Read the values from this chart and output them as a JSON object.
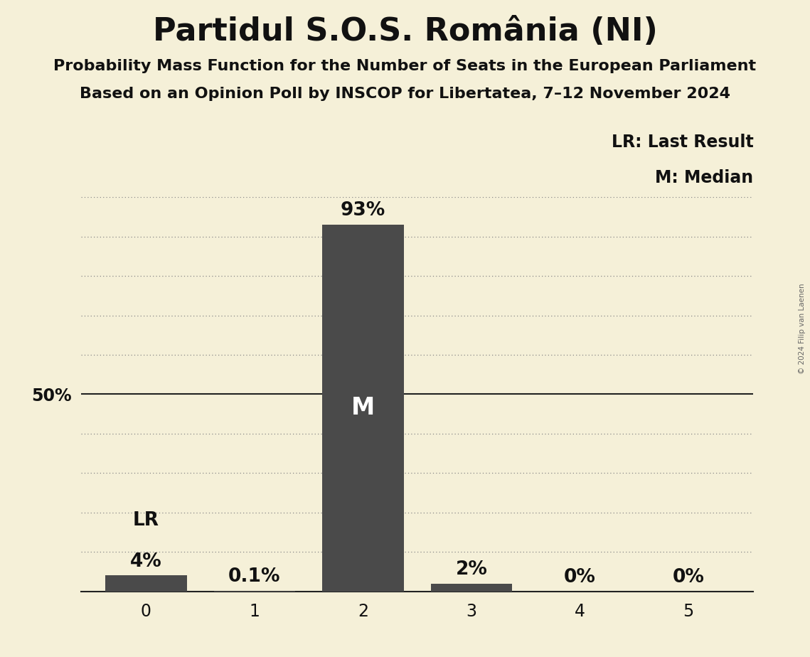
{
  "title": "Partidul S.O.S. România (NI)",
  "subtitle1": "Probability Mass Function for the Number of Seats in the European Parliament",
  "subtitle2": "Based on an Opinion Poll by INSCOP for Libertatea, 7–12 November 2024",
  "copyright": "© 2024 Filip van Laenen",
  "categories": [
    0,
    1,
    2,
    3,
    4,
    5
  ],
  "values": [
    4.0,
    0.1,
    93.0,
    2.0,
    0.0,
    0.0
  ],
  "bar_color": "#4a4a4a",
  "background_color": "#f5f0d8",
  "bar_labels": [
    "4%",
    "0.1%",
    "93%",
    "2%",
    "0%",
    "0%"
  ],
  "median_bar": 2,
  "lr_bar": 0,
  "ylim": [
    0,
    100
  ],
  "yticks": [
    0,
    10,
    20,
    30,
    40,
    50,
    60,
    70,
    80,
    90,
    100
  ],
  "legend_lr": "LR: Last Result",
  "legend_m": "M: Median",
  "title_fontsize": 32,
  "subtitle_fontsize": 16,
  "bar_label_fontsize": 19,
  "axis_tick_fontsize": 17,
  "legend_fontsize": 17,
  "ylabel_fontsize": 17,
  "median_label_fontsize": 24,
  "lr_label_fontsize": 19,
  "grid_color": "#888888",
  "solid_line_color": "#222222",
  "copyright_fontsize": 7.5
}
